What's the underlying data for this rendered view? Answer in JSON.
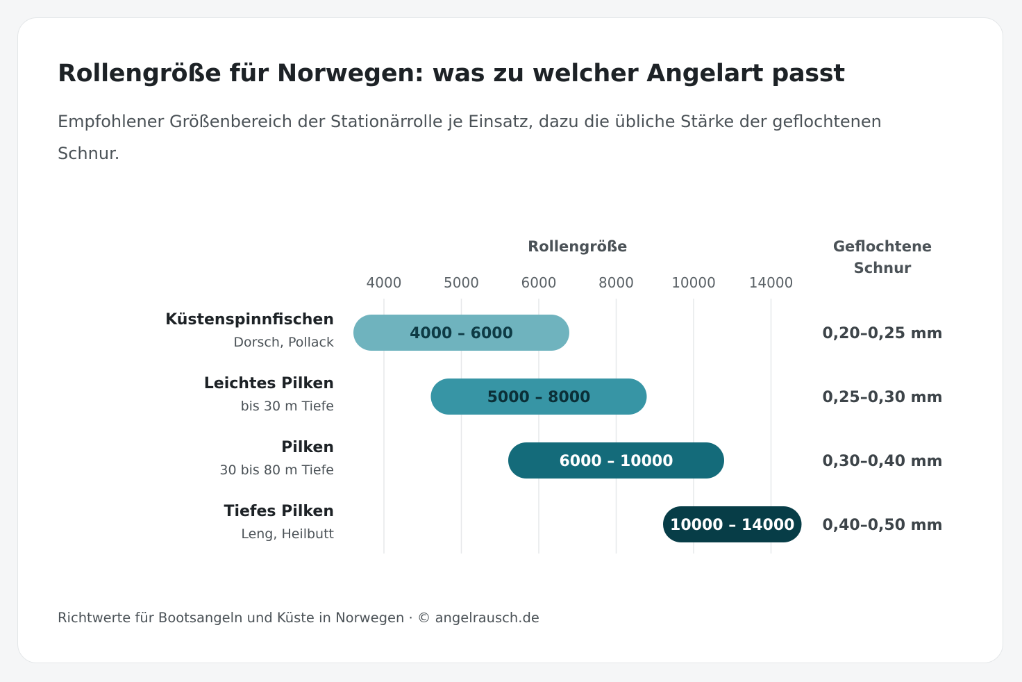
{
  "title": "Rollengröße für Norwegen: was zu welcher Angelart passt",
  "subtitle": "Empfohlener Größenbereich der Stationärrolle je Einsatz, dazu die übliche Stärke der geflochtenen Schnur.",
  "footer": "Richtwerte für Bootsangeln und Küste in Norwegen · © angelrausch.de",
  "chart_data": {
    "type": "range-bar",
    "axis_title": "Rollengröße",
    "right_column_title": [
      "Geflochtene",
      "Schnur"
    ],
    "ticks": [
      "4000",
      "5000",
      "6000",
      "8000",
      "10000",
      "14000"
    ],
    "rows": [
      {
        "label": "Küstenspinnfischen",
        "sublabel": "Dorsch, Pollack",
        "from": "4000",
        "to": "6000",
        "range_label": "4000 – 6000",
        "line": "0,20–0,25 mm",
        "color": "#6fb3be",
        "text_color": "#0e3b45"
      },
      {
        "label": "Leichtes Pilken",
        "sublabel": "bis 30 m Tiefe",
        "from": "5000",
        "to": "8000",
        "range_label": "5000 – 8000",
        "line": "0,25–0,30 mm",
        "color": "#3795a5",
        "text_color": "#0b2f37"
      },
      {
        "label": "Pilken",
        "sublabel": "30 bis 80 m Tiefe",
        "from": "6000",
        "to": "10000",
        "range_label": "6000 – 10000",
        "line": "0,30–0,40 mm",
        "color": "#146b7a",
        "text_color": "#ffffff"
      },
      {
        "label": "Tiefes Pilken",
        "sublabel": "Leng, Heilbutt",
        "from": "10000",
        "to": "14000",
        "range_label": "10000 – 14000",
        "line": "0,40–0,50 mm",
        "color": "#073d47",
        "text_color": "#ffffff"
      }
    ]
  }
}
